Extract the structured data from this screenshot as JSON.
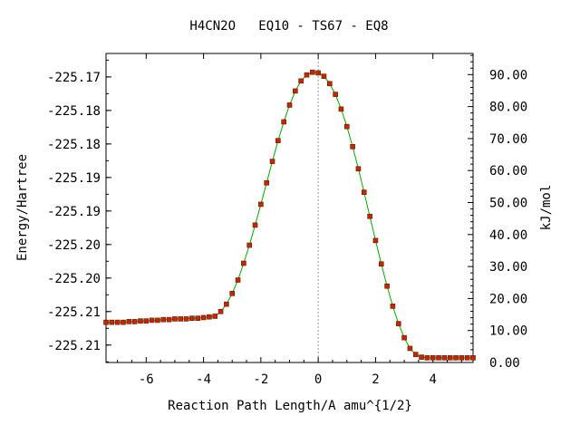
{
  "chart_data": {
    "type": "line",
    "title": "H4CN2O   EQ10 - TS67 - EQ8",
    "xlabel": "Reaction Path Length/A amu^{1/2}",
    "ylabel": "Energy/Hartree",
    "y2label": "kJ/mol",
    "xlim": [
      -7.4,
      5.4
    ],
    "ylim": [
      -225.2126,
      -225.1665
    ],
    "y2lim": [
      0.0,
      96.6
    ],
    "grid": false,
    "legend": "none",
    "x_ticks": [
      -6,
      -4,
      -2,
      0,
      2,
      4
    ],
    "x_tick_labels": [
      "-6",
      "-4",
      "-2",
      "0",
      "2",
      "4"
    ],
    "y_ticks": [
      -225.17,
      -225.175,
      -225.18,
      -225.185,
      -225.19,
      -225.195,
      -225.2,
      -225.205,
      -225.21
    ],
    "y_tick_labels": [
      "-225.17",
      "-225.18",
      "-225.18",
      "-225.19",
      "-225.19",
      "-225.20",
      "-225.20",
      "-225.21",
      "-225.21"
    ],
    "y2_ticks": [
      0,
      10,
      20,
      30,
      40,
      50,
      60,
      70,
      80,
      90
    ],
    "y2_tick_labels": [
      "0.00",
      "10.00",
      "20.00",
      "30.00",
      "40.00",
      "50.00",
      "60.00",
      "70.00",
      "80.00",
      "90.00"
    ],
    "ts_x": 0.0,
    "colors": {
      "line": "#00aa00",
      "marker": "#cc2200",
      "marker_edge": "#552200",
      "ts_line": "#999999"
    },
    "series": [
      {
        "x": [
          -7.4,
          -7.2,
          -7.0,
          -6.8,
          -6.6,
          -6.4,
          -6.2,
          -6.0,
          -5.8,
          -5.6,
          -5.4,
          -5.2,
          -5.0,
          -4.8,
          -4.6,
          -4.4,
          -4.2,
          -4.0,
          -3.8,
          -3.6,
          -3.4,
          -3.2,
          -3.0,
          -2.8,
          -2.6,
          -2.4,
          -2.2,
          -2.0,
          -1.8,
          -1.6,
          -1.4,
          -1.2,
          -1.0,
          -0.8,
          -0.6,
          -0.4,
          -0.2,
          0.0,
          0.2,
          0.4,
          0.6,
          0.8,
          1.0,
          1.2,
          1.4,
          1.6,
          1.8,
          2.0,
          2.2,
          2.4,
          2.6,
          2.8,
          3.0,
          3.2,
          3.4,
          3.6,
          3.8,
          4.0,
          4.2,
          4.4,
          4.6,
          4.8,
          5.0,
          5.2,
          5.4
        ],
        "values": [
          -225.2066,
          -225.2066,
          -225.2066,
          -225.2066,
          -225.2065,
          -225.2065,
          -225.2064,
          -225.2064,
          -225.2063,
          -225.2063,
          -225.2062,
          -225.2062,
          -225.2061,
          -225.2061,
          -225.2061,
          -225.206,
          -225.206,
          -225.2059,
          -225.2058,
          -225.2057,
          -225.205,
          -225.2039,
          -225.2023,
          -225.2003,
          -225.1978,
          -225.1951,
          -225.1921,
          -225.189,
          -225.1858,
          -225.1826,
          -225.1795,
          -225.1767,
          -225.1742,
          -225.1721,
          -225.1706,
          -225.1697,
          -225.1693,
          -225.1694,
          -225.1699,
          -225.171,
          -225.1726,
          -225.1748,
          -225.1774,
          -225.1804,
          -225.1837,
          -225.1872,
          -225.1908,
          -225.1944,
          -225.1979,
          -225.2012,
          -225.2042,
          -225.2068,
          -225.2089,
          -225.2105,
          -225.2114,
          -225.2118,
          -225.2119,
          -225.2119,
          -225.2119,
          -225.2119,
          -225.2119,
          -225.2119,
          -225.2119,
          -225.2119,
          -225.2119
        ]
      }
    ]
  }
}
